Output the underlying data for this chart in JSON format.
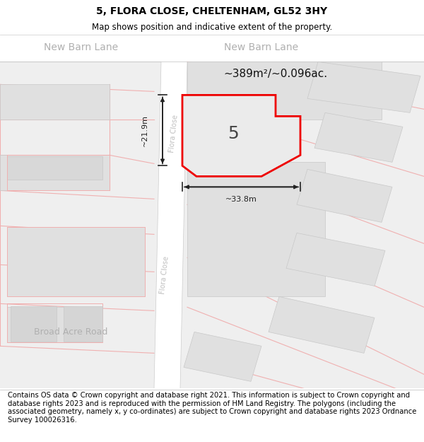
{
  "title": "5, FLORA CLOSE, CHELTENHAM, GL52 3HY",
  "subtitle": "Map shows position and indicative extent of the property.",
  "footer": "Contains OS data © Crown copyright and database right 2021. This information is subject to Crown copyright and database rights 2023 and is reproduced with the permission of HM Land Registry. The polygons (including the associated geometry, namely x, y co-ordinates) are subject to Crown copyright and database rights 2023 Ordnance Survey 100026316.",
  "area_label": "~389m²/~0.096ac.",
  "width_label": "~33.8m",
  "height_label": "~21.9m",
  "number_label": "5",
  "map_bg": "#efefef",
  "road_white": "#ffffff",
  "road_line": "#cccccc",
  "building_fill": "#e0e0e0",
  "building_outline": "#c8c8c8",
  "plot_outline_red": "#ee0000",
  "plot_fill": "#e8e8e8",
  "road_label_color": "#b0b0b0",
  "road_label_color2": "#c0c0c0",
  "dim_color": "#222222",
  "pink_line": "#f0b0b0",
  "title_fontsize": 10,
  "subtitle_fontsize": 8.5,
  "footer_fontsize": 7.2,
  "new_barn_lane_fontsize": 10,
  "flora_close_fontsize": 7,
  "broad_acre_fontsize": 9
}
